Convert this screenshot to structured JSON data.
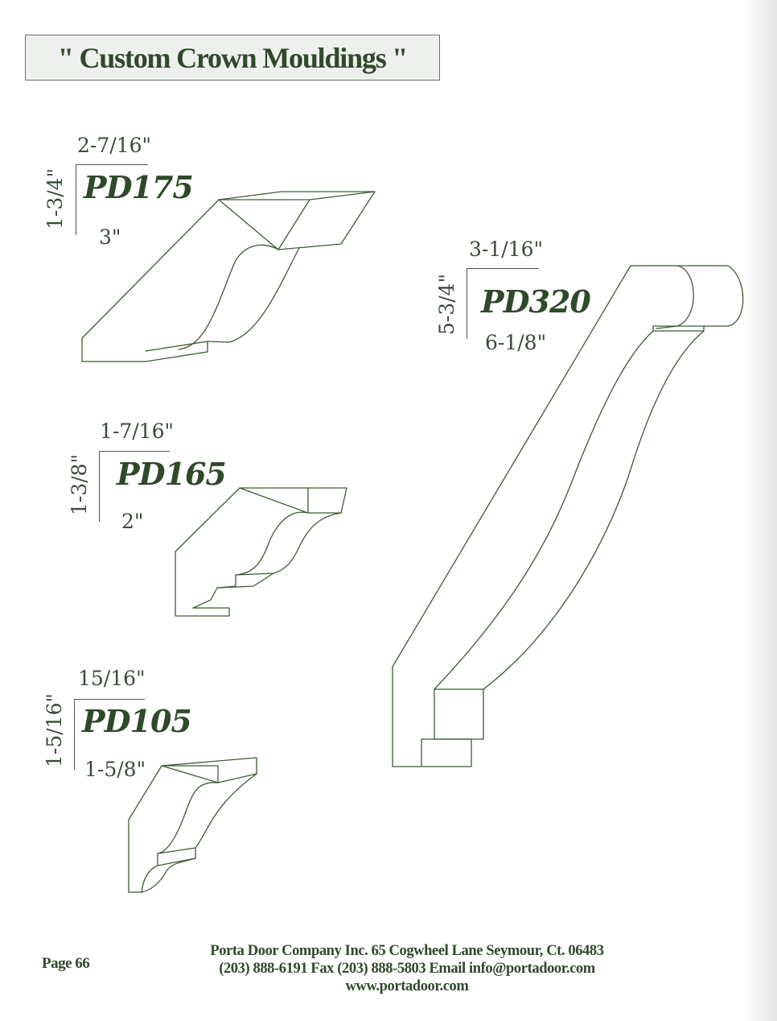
{
  "title": "\" Custom Crown Mouldings \"",
  "mouldings": [
    {
      "model": "PD175",
      "top_dim": "2-7/16\"",
      "side_dim": "1-3/4\"",
      "bottom_dim": "3\""
    },
    {
      "model": "PD165",
      "top_dim": "1-7/16\"",
      "side_dim": "1-3/8\"",
      "bottom_dim": "2\""
    },
    {
      "model": "PD105",
      "top_dim": "15/16\"",
      "side_dim": "1-5/16\"",
      "bottom_dim": "1-5/8\""
    },
    {
      "model": "PD320",
      "top_dim": "3-1/16\"",
      "side_dim": "5-3/4\"",
      "bottom_dim": "6-1/8\""
    }
  ],
  "page": "Page 66",
  "footer": {
    "line1": "Porta Door Company Inc. 65 Cogwheel Lane Seymour, Ct. 06483",
    "line2": "(203) 888-6191 Fax (203) 888-5803 Email info@portadoor.com",
    "line3": "www.portadoor.com"
  },
  "colors": {
    "accent": "#2f4a2a",
    "line": "#3d5a35",
    "title_bg": "#eef0ee"
  }
}
